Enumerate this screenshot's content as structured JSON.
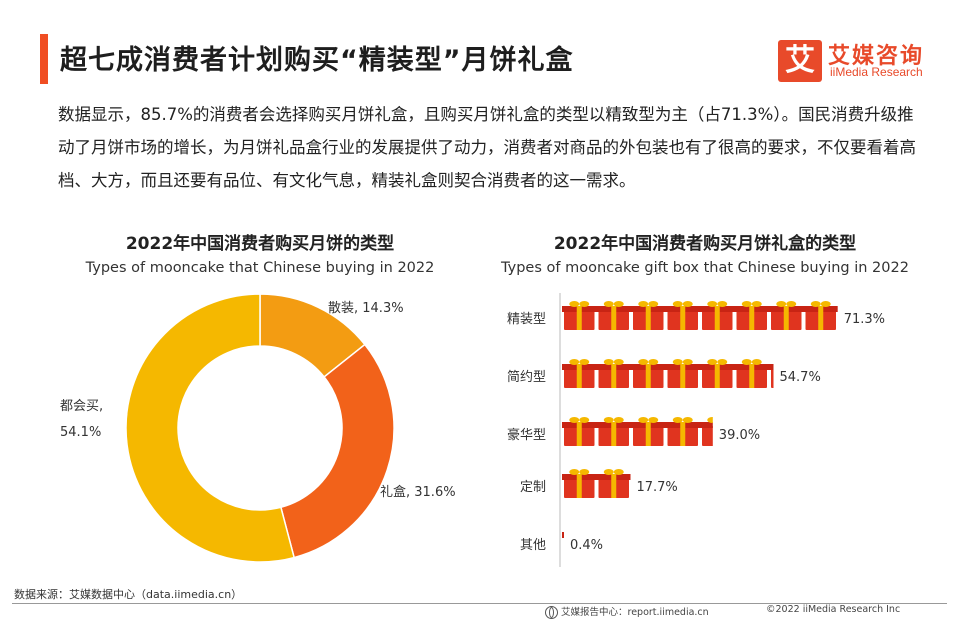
{
  "header": {
    "title": "超七成消费者计划购买“精装型”月饼礼盒",
    "logo_cn": "艾媒咨询",
    "logo_en": "iiMedia Research",
    "logo_mark": "艾"
  },
  "description": "数据显示，85.7%的消费者会选择购买月饼礼盒，且购买月饼礼盒的类型以精致型为主（占71.3%）。国民消费升级推动了月饼市场的增长，为月饼礼品盒行业的发展提供了动力，消费者对商品的外包装也有了很高的要求，不仅要看着高档、大方，而且还要有品位、有文化气息，精装礼盒则契合消费者的这一需求。",
  "chart_data": [
    {
      "type": "pie",
      "title": "2022年中国消费者购买月饼的类型",
      "subtitle": "Types of mooncake that Chinese buying in 2022",
      "slices": [
        {
          "label": "散装",
          "value": 14.3,
          "display": "散装, 14.3%",
          "color": "#f39c12"
        },
        {
          "label": "礼盒",
          "value": 31.6,
          "display": "礼盒, 31.6%",
          "color": "#f2621a"
        },
        {
          "label": "都会买",
          "value": 54.1,
          "display_line1": "都会买,",
          "display_line2": "54.1%",
          "color": "#f5b800"
        }
      ]
    },
    {
      "type": "bar",
      "orientation": "horizontal",
      "title": "2022年中国消费者购买月饼礼盒的类型",
      "subtitle": "Types of mooncake gift box that Chinese buying in 2022",
      "categories": [
        "精装型",
        "简约型",
        "豪华型",
        "定制",
        "其他"
      ],
      "values": [
        71.3,
        54.7,
        39.0,
        17.7,
        0.4
      ],
      "value_labels": [
        "71.3%",
        "54.7%",
        "39.0%",
        "17.7%",
        "0.4%"
      ],
      "xlim": [
        0,
        75
      ]
    }
  ],
  "footer": {
    "source": "数据来源：艾媒数据中心（data.iimedia.cn）",
    "report_center": "艾媒报告中心：report.iimedia.cn",
    "copyright": "©2022  iiMedia Research  Inc"
  }
}
